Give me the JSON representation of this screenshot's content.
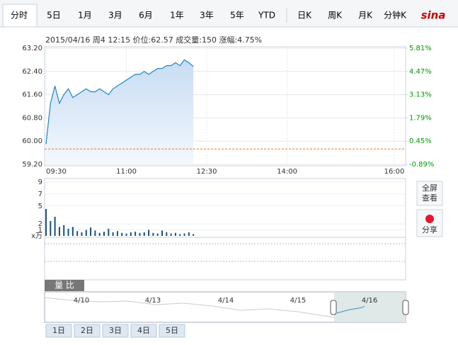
{
  "tabs": [
    "分时",
    "5日",
    "1月",
    "3月",
    "6月",
    "1年",
    "3年",
    "5年",
    "YTD",
    "日K",
    "周K",
    "月K",
    "分钟K"
  ],
  "logo": "sina",
  "info": "2015/04/16 周4 12:15 价位:62.57 成交量:150 涨幅:4.75%",
  "ratio_label": "量 比",
  "side_buttons": [
    [
      "全屏",
      "查看"
    ],
    [
      "分享"
    ]
  ],
  "navigator_dates": [
    "4/10",
    "4/13",
    "4/14",
    "4/15",
    "4/16"
  ],
  "day_buttons": [
    "1日",
    "2日",
    "3日",
    "4日",
    "5日"
  ],
  "chart_data": [
    {
      "type": "line",
      "x": [
        "09:30",
        "09:35",
        "09:40",
        "09:45",
        "09:50",
        "09:55",
        "10:00",
        "10:05",
        "10:10",
        "10:15",
        "10:20",
        "10:25",
        "10:30",
        "10:35",
        "10:40",
        "10:45",
        "10:50",
        "10:55",
        "11:00",
        "11:05",
        "11:10",
        "11:15",
        "11:20",
        "11:25",
        "11:30",
        "11:35",
        "11:40",
        "11:45",
        "11:50",
        "11:55",
        "12:00",
        "12:05",
        "12:10",
        "12:15"
      ],
      "series": [
        {
          "name": "价位",
          "color": "#1b86c6",
          "values": [
            59.9,
            61.3,
            61.9,
            61.3,
            61.6,
            61.8,
            61.5,
            61.6,
            61.7,
            61.8,
            61.7,
            61.7,
            61.8,
            61.7,
            61.6,
            61.8,
            61.9,
            62.0,
            62.1,
            62.2,
            62.3,
            62.3,
            62.4,
            62.3,
            62.4,
            62.5,
            62.5,
            62.6,
            62.6,
            62.7,
            62.6,
            62.8,
            62.7,
            62.57
          ]
        }
      ],
      "reference_line": 59.73,
      "xlim": [
        "09:30",
        "16:00"
      ],
      "xticks": [
        "09:30",
        "11:00",
        "12:30",
        "14:00",
        "16:00"
      ],
      "ylim": [
        59.2,
        63.2
      ],
      "yticks": [
        {
          "value": 63.2,
          "label": "63.20"
        },
        {
          "value": 62.4,
          "label": "62.40"
        },
        {
          "value": 61.6,
          "label": "61.60"
        },
        {
          "value": 60.8,
          "label": "60.80"
        },
        {
          "value": 60.0,
          "label": "60.00"
        },
        {
          "value": 59.2,
          "label": "59.20"
        }
      ],
      "y2lim": [
        -0.89,
        5.81
      ],
      "y2ticks": [
        {
          "value": 5.81,
          "label": "5.81%"
        },
        {
          "value": 4.47,
          "label": "4.47%"
        },
        {
          "value": 3.13,
          "label": "3.13%"
        },
        {
          "value": 1.79,
          "label": "1.79%"
        },
        {
          "value": 0.45,
          "label": "0.45%"
        },
        {
          "value": -0.89,
          "label": "-0.89%"
        }
      ],
      "grid": true
    },
    {
      "type": "bar",
      "x": [
        "09:30",
        "09:35",
        "09:40",
        "09:45",
        "09:50",
        "09:55",
        "10:00",
        "10:05",
        "10:10",
        "10:15",
        "10:20",
        "10:25",
        "10:30",
        "10:35",
        "10:40",
        "10:45",
        "10:50",
        "10:55",
        "11:00",
        "11:05",
        "11:10",
        "11:15",
        "11:20",
        "11:25",
        "11:30",
        "11:35",
        "11:40",
        "11:45",
        "11:50",
        "11:55",
        "12:00",
        "12:05",
        "12:10",
        "12:15"
      ],
      "values": [
        4.5,
        2.5,
        3.2,
        1.5,
        1.8,
        1.2,
        1.5,
        0.8,
        0.6,
        1.0,
        1.4,
        0.9,
        0.5,
        0.7,
        1.2,
        0.6,
        0.8,
        0.5,
        0.4,
        0.6,
        0.7,
        0.5,
        0.6,
        1.0,
        0.5,
        0.4,
        0.9,
        0.6,
        0.4,
        0.5,
        0.3,
        0.4,
        0.6,
        0.3
      ],
      "color": "#1b4f7c",
      "xlim": [
        "09:30",
        "16:00"
      ],
      "ylim": [
        0,
        9
      ],
      "yticks": [
        9,
        7,
        5,
        2,
        1
      ],
      "unit_label": "x万",
      "grid": true
    }
  ]
}
